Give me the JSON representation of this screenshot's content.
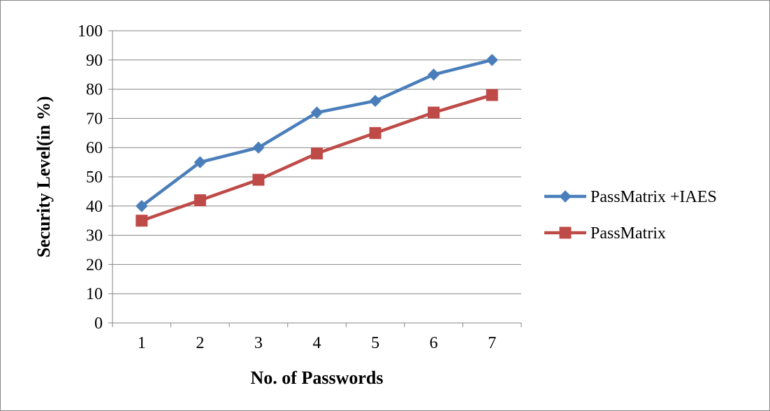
{
  "chart_data": {
    "type": "line",
    "title": "",
    "xlabel": "No. of Passwords",
    "ylabel": "Security Level(in %)",
    "categories": [
      "1",
      "2",
      "3",
      "4",
      "5",
      "6",
      "7"
    ],
    "ylim": [
      0,
      100
    ],
    "yticks": [
      "0",
      "10",
      "20",
      "30",
      "40",
      "50",
      "60",
      "70",
      "80",
      "90",
      "100"
    ],
    "grid": true,
    "legend_position": "right",
    "series": [
      {
        "name": "PassMatrix +IAES",
        "values": [
          40,
          55,
          60,
          72,
          76,
          85,
          90
        ],
        "color": "#4a7ebb",
        "marker": "diamond"
      },
      {
        "name": "PassMatrix",
        "values": [
          35,
          42,
          49,
          58,
          65,
          72,
          78
        ],
        "color": "#be4b48",
        "marker": "square"
      }
    ]
  }
}
